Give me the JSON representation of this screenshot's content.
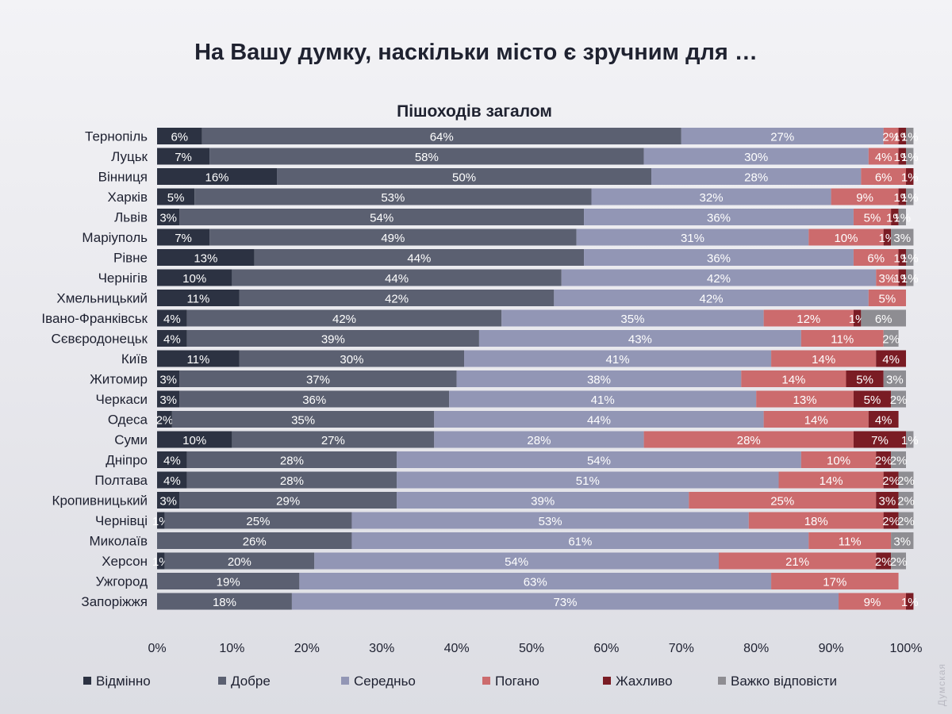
{
  "chart_data": {
    "type": "bar",
    "orientation": "horizontal",
    "stacked": true,
    "title": "На Вашу думку, наскільки місто є зручним для …",
    "subtitle": "Пішоходів загалом",
    "xlim": [
      0,
      100
    ],
    "x_ticks": [
      "0%",
      "10%",
      "20%",
      "30%",
      "40%",
      "50%",
      "60%",
      "70%",
      "80%",
      "90%",
      "100%"
    ],
    "categories": [
      "Тернопіль",
      "Луцьк",
      "Вінниця",
      "Харків",
      "Львів",
      "Маріуполь",
      "Рівне",
      "Чернігів",
      "Хмельницький",
      "Івано-Франківськ",
      "Сєвєродонецьк",
      "Київ",
      "Житомир",
      "Черкаси",
      "Одеса",
      "Суми",
      "Дніпро",
      "Полтава",
      "Кропивницький",
      "Чернівці",
      "Миколаїв",
      "Херсон",
      "Ужгород",
      "Запоріжжя"
    ],
    "series": [
      {
        "name": "Відмінно",
        "color": "#2c3242",
        "values": [
          6,
          7,
          16,
          5,
          3,
          7,
          13,
          10,
          11,
          4,
          4,
          11,
          3,
          3,
          2,
          10,
          4,
          4,
          3,
          1,
          0,
          1,
          0,
          0
        ]
      },
      {
        "name": "Добре",
        "color": "#5b6071",
        "values": [
          64,
          58,
          50,
          53,
          54,
          49,
          44,
          44,
          42,
          42,
          39,
          30,
          37,
          36,
          35,
          27,
          28,
          28,
          29,
          25,
          26,
          20,
          19,
          18
        ]
      },
      {
        "name": "Середньо",
        "color": "#9296b5",
        "values": [
          27,
          30,
          28,
          32,
          36,
          31,
          36,
          42,
          42,
          35,
          43,
          41,
          38,
          41,
          44,
          28,
          54,
          51,
          39,
          53,
          61,
          54,
          63,
          73
        ]
      },
      {
        "name": "Погано",
        "color": "#cc6b6d",
        "values": [
          2,
          4,
          6,
          9,
          5,
          10,
          6,
          3,
          5,
          12,
          11,
          14,
          14,
          13,
          14,
          28,
          10,
          14,
          25,
          18,
          11,
          21,
          17,
          9
        ]
      },
      {
        "name": "Жахливо",
        "color": "#7a1c24",
        "values": [
          1,
          1,
          1,
          1,
          1,
          1,
          1,
          1,
          0,
          1,
          0,
          4,
          5,
          5,
          4,
          7,
          2,
          2,
          3,
          2,
          0,
          2,
          0,
          1
        ]
      },
      {
        "name": "Важко відповісти",
        "color": "#8e8d92",
        "values": [
          1,
          1,
          0,
          1,
          1,
          3,
          1,
          1,
          0,
          6,
          2,
          0,
          3,
          2,
          0,
          1,
          2,
          2,
          2,
          2,
          3,
          2,
          0,
          0
        ]
      }
    ],
    "legend_position": "bottom"
  },
  "watermark": "Думская"
}
